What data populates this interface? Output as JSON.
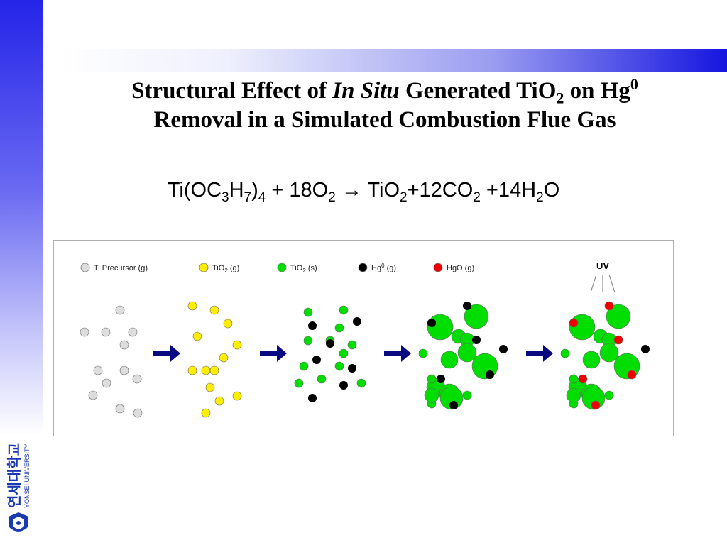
{
  "title": {
    "part1": "Structural Effect of ",
    "italic": "In Situ",
    "part2": " Generated TiO",
    "sub2": "2",
    "part3": " on Hg",
    "sup0": "0",
    "line2": "Removal in a Simulated Combustion Flue Gas"
  },
  "equation": {
    "t1": "Ti(OC",
    "s1": "3",
    "t2": "H",
    "s2": "7",
    "t3": ")",
    "s3": "4",
    "t4": " + 18O",
    "s4": "2",
    "t5": " → TiO",
    "s5": "2",
    "t6": "+12CO",
    "s6": "2",
    "t7": " +14H",
    "s7": "2",
    "t8": "O"
  },
  "legend": [
    {
      "label": "Ti Precursor (g)",
      "color": "#dddddd"
    },
    {
      "label": "TiO",
      "sub": "2",
      "suffix": " (g)",
      "color": "#ffee00"
    },
    {
      "label": "TiO",
      "sub": "2",
      "suffix": " (s)",
      "color": "#00dd00"
    },
    {
      "label": "Hg",
      "sup": "0",
      "suffix": " (g)",
      "color": "#000000"
    },
    {
      "label": "HgO (g)",
      "color": "#ee0000"
    }
  ],
  "uv_label": "UV",
  "logo": {
    "korean": "연세대학교",
    "english": "YONSEI UNIVERSITY"
  },
  "colors": {
    "sidebar_blue": "#2424e8",
    "arrow_navy": "#0a0a80",
    "precursor_gray": "#dddddd",
    "tio2_gas_yellow": "#ffee00",
    "tio2_solid_green": "#00dd00",
    "hg_black": "#000000",
    "hgo_red": "#ee0000"
  }
}
